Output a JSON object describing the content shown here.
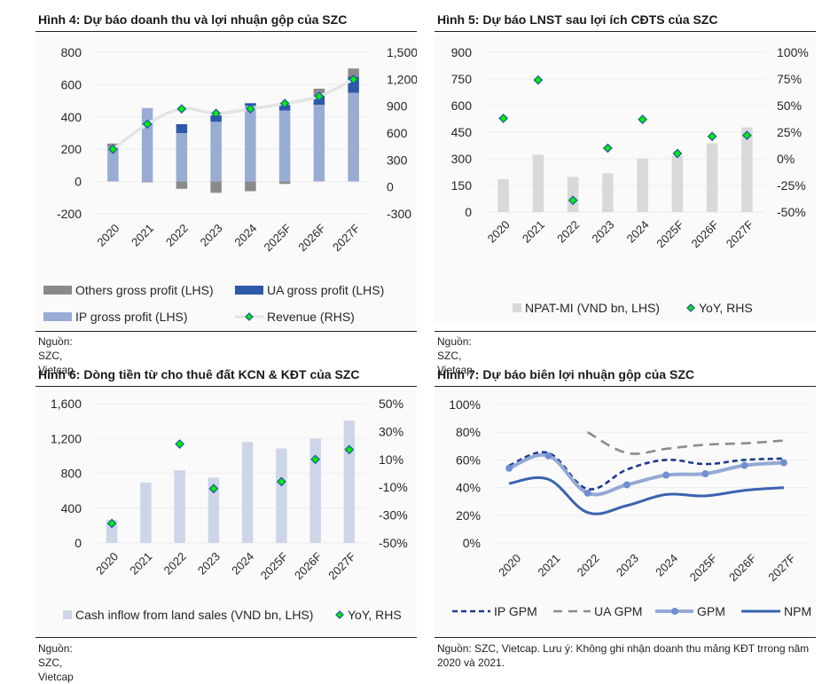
{
  "figures": {
    "fig4": {
      "title": "Hình 4: Dự báo doanh thu và lợi nhuận gộp của SZC",
      "source": "Nguồn: SZC, Vietcap"
    },
    "fig5": {
      "title": "Hình 5: Dự báo LNST sau lợi ích CĐTS của SZC",
      "source": "Nguồn: SZC, Vietcap"
    },
    "fig6": {
      "title": "Hình 6: Dòng tiền từ cho thuê đất KCN & KĐT của SZC",
      "source": "Nguồn: SZC, Vietcap"
    },
    "fig7": {
      "title": "Hình 7: Dự báo biên lợi nhuận gộp của SZC",
      "source": "Nguồn: SZC, Vietcap. Lưu ý: Không ghi nhận doanh thu mảng KĐT trrong năm 2020 và 2021."
    }
  },
  "colors": {
    "ip": "#98acd4",
    "ua": "#2e58a8",
    "others": "#8a8a8a",
    "revenue_line": "#e4e4e4",
    "marker_fill": "#00f000",
    "marker_edge": "#1f5fa0",
    "npat": "#d9d9d9",
    "cash": "#cdd6e8",
    "ip_gpm": "#1a3a8f",
    "ua_gpm": "#8c8c8c",
    "gpm": "#93a9d6",
    "gpm_marker": "#6f8fcf",
    "npm": "#3a63b0",
    "grid": "#ececec"
  },
  "chart_data": [
    {
      "id": "fig4",
      "type": "bar",
      "stacked": true,
      "title": "Hình 4: Dự báo doanh thu và lợi nhuận gộp của SZC",
      "categories": [
        "2020",
        "2021",
        "2022",
        "2023",
        "2024",
        "2025F",
        "2026F",
        "2027F"
      ],
      "y_left": {
        "ylim": [
          -200,
          800
        ],
        "ticks": [
          "-200",
          "0",
          "200",
          "400",
          "600",
          "800"
        ],
        "tick_values": [
          -200,
          0,
          200,
          400,
          600,
          800
        ]
      },
      "y_right": {
        "ylim": [
          -300,
          1500
        ],
        "ticks": [
          "-300",
          "0",
          "300",
          "600",
          "900",
          "1,200",
          "1,500"
        ],
        "tick_values": [
          -300,
          0,
          300,
          600,
          900,
          1200,
          1500
        ]
      },
      "series": [
        {
          "name": "IP gross profit (LHS)",
          "axis": "left",
          "kind": "bar",
          "values": [
            210,
            455,
            300,
            370,
            470,
            440,
            475,
            550
          ]
        },
        {
          "name": "UA gross profit (LHS)",
          "axis": "left",
          "kind": "bar",
          "values": [
            0,
            0,
            55,
            40,
            15,
            35,
            60,
            100
          ]
        },
        {
          "name": "Others gross profit (LHS)",
          "axis": "left",
          "kind": "bar",
          "values": [
            25,
            -5,
            -45,
            -70,
            -60,
            -15,
            40,
            50
          ]
        },
        {
          "name": "Revenue (RHS)",
          "axis": "right",
          "kind": "line",
          "values": [
            420,
            700,
            870,
            820,
            870,
            930,
            1010,
            1200
          ]
        }
      ],
      "legend": [
        "Others gross profit (LHS)",
        "UA gross profit (LHS)",
        "IP gross profit (LHS)",
        "Revenue (RHS)"
      ],
      "legend_position": "bottom",
      "grid": true
    },
    {
      "id": "fig5",
      "type": "bar",
      "title": "Hình 5: Dự báo LNST sau lợi ích CĐTS của SZC",
      "categories": [
        "2020",
        "2021",
        "2022",
        "2023",
        "2024",
        "2025F",
        "2026F",
        "2027F"
      ],
      "y_left": {
        "ylim": [
          0,
          900
        ],
        "ticks": [
          "0",
          "150",
          "300",
          "450",
          "600",
          "750",
          "900"
        ],
        "tick_values": [
          0,
          150,
          300,
          450,
          600,
          750,
          900
        ]
      },
      "y_right": {
        "ylim": [
          -50,
          100
        ],
        "ticks": [
          "-50%",
          "-25%",
          "0%",
          "25%",
          "50%",
          "75%",
          "100%"
        ],
        "tick_values": [
          -50,
          -25,
          0,
          25,
          50,
          75,
          100
        ]
      },
      "series": [
        {
          "name": "NPAT-MI (VND bn, LHS)",
          "axis": "left",
          "kind": "bar",
          "values": [
            185,
            322,
            198,
            218,
            302,
            318,
            387,
            477
          ]
        },
        {
          "name": "YoY, RHS",
          "axis": "right",
          "kind": "scatter",
          "values": [
            38,
            74,
            -39,
            10,
            37,
            5,
            21,
            22
          ]
        }
      ],
      "legend": [
        "NPAT-MI (VND bn, LHS)",
        "YoY, RHS"
      ],
      "legend_position": "bottom",
      "grid": true
    },
    {
      "id": "fig6",
      "type": "bar",
      "title": "Hình 6: Dòng tiền từ cho thuê đất KCN & KĐT của SZC",
      "categories": [
        "2020",
        "2021",
        "2022",
        "2023",
        "2024",
        "2025F",
        "2026F",
        "2027F"
      ],
      "y_left": {
        "ylim": [
          0,
          1600
        ],
        "ticks": [
          "0",
          "400",
          "800",
          "1,200",
          "1,600"
        ],
        "tick_values": [
          0,
          400,
          800,
          1200,
          1600
        ]
      },
      "y_right": {
        "ylim": [
          -50,
          50
        ],
        "ticks": [
          "-50%",
          "-30%",
          "-10%",
          "10%",
          "30%",
          "50%"
        ],
        "tick_values": [
          -50,
          -30,
          -10,
          10,
          30,
          50
        ]
      },
      "series": [
        {
          "name": "Cash inflow from land sales (VND bn, LHS)",
          "axis": "left",
          "kind": "bar",
          "values": [
            265,
            695,
            835,
            750,
            1160,
            1085,
            1200,
            1405
          ]
        },
        {
          "name": "YoY, RHS",
          "axis": "right",
          "kind": "scatter",
          "values": [
            -36,
            null,
            21,
            -11,
            null,
            -6,
            10,
            17
          ]
        }
      ],
      "legend": [
        "Cash inflow from land sales (VND bn, LHS)",
        "YoY, RHS"
      ],
      "legend_position": "bottom",
      "grid": true
    },
    {
      "id": "fig7",
      "type": "line",
      "title": "Hình 7: Dự báo biên lợi nhuận gộp của SZC",
      "categories": [
        "2020",
        "2021",
        "2022",
        "2023",
        "2024",
        "2025F",
        "2026F",
        "2027F"
      ],
      "y_left": {
        "ylim": [
          0,
          100
        ],
        "ticks": [
          "0%",
          "20%",
          "40%",
          "60%",
          "80%",
          "100%"
        ],
        "tick_values": [
          0,
          20,
          40,
          60,
          80,
          100
        ]
      },
      "series": [
        {
          "name": "IP GPM",
          "style": "dashed",
          "values": [
            56,
            65,
            39,
            53,
            60,
            57,
            60,
            61
          ]
        },
        {
          "name": "UA GPM",
          "style": "dashed-gray",
          "values": [
            null,
            null,
            80,
            65,
            68,
            71,
            72,
            74
          ]
        },
        {
          "name": "GPM",
          "style": "solid-marker",
          "values": [
            54,
            63,
            36,
            42,
            49,
            50,
            56,
            58
          ]
        },
        {
          "name": "NPM",
          "style": "solid",
          "values": [
            43,
            46,
            22,
            27,
            35,
            34,
            38,
            40
          ]
        }
      ],
      "legend": [
        "IP GPM",
        "UA GPM",
        "GPM",
        "NPM"
      ],
      "legend_position": "bottom",
      "grid": true
    }
  ]
}
